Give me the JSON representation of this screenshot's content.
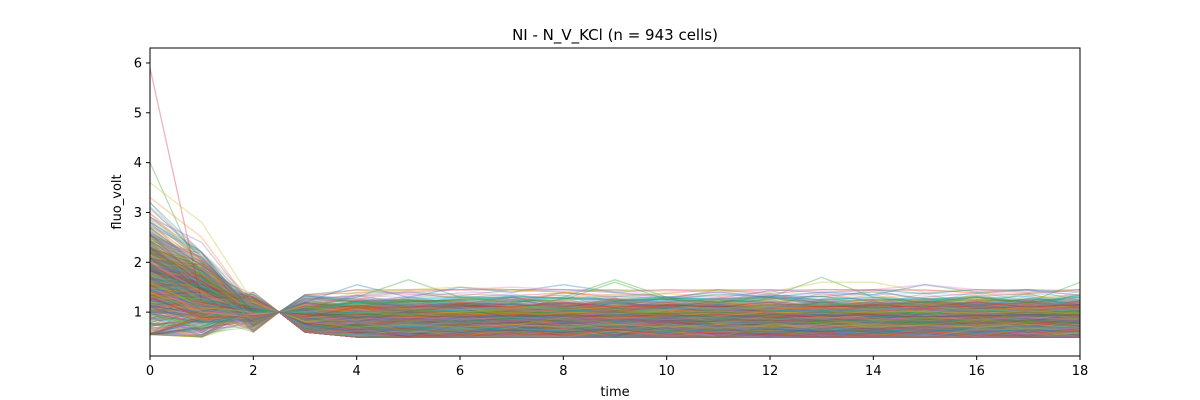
{
  "chart_data": {
    "type": "line",
    "title": "NI - N_V_KCl (n = 943 cells)",
    "xlabel": "time",
    "ylabel": "fluo_volt",
    "xlim": [
      0,
      18
    ],
    "ylim": [
      0.12,
      6.3
    ],
    "xticks": [
      "0",
      "2",
      "4",
      "6",
      "8",
      "10",
      "12",
      "14",
      "16",
      "18"
    ],
    "yticks": [
      "1",
      "2",
      "3",
      "4",
      "5",
      "6"
    ],
    "grid": false,
    "legend": "none",
    "x": [
      0,
      1,
      2,
      2.5,
      3,
      4,
      5,
      6,
      7,
      8,
      9,
      10,
      11,
      12,
      13,
      14,
      15,
      16,
      17,
      18
    ],
    "n_series": 943,
    "series_alpha": 0.25,
    "palette": [
      "#1f77b4",
      "#ff7f0e",
      "#2ca02c",
      "#d62728",
      "#9467bd",
      "#8c564b",
      "#e377c2",
      "#7f7f7f",
      "#bcbd22",
      "#17becf"
    ],
    "series": [
      {
        "values": [
          5.9,
          1.2,
          1.0,
          1.0,
          0.95,
          0.9,
          0.92,
          0.9,
          0.95,
          0.93,
          0.9,
          0.92,
          0.95,
          0.9,
          0.93,
          0.95,
          0.9,
          0.92,
          0.95,
          0.93
        ],
        "color": "#d62728"
      },
      {
        "values": [
          4.0,
          1.7,
          1.1,
          1.0,
          0.9,
          1.0,
          1.05,
          1.0,
          0.98,
          1.0,
          1.02,
          0.98,
          1.0,
          1.02,
          1.0,
          0.98,
          1.0,
          1.02,
          1.0,
          1.0
        ],
        "color": "#2ca02c"
      },
      {
        "values": [
          3.6,
          2.8,
          1.2,
          1.0,
          1.1,
          1.0,
          0.95,
          1.0,
          1.05,
          1.0,
          0.98,
          1.0,
          1.02,
          1.0,
          0.98,
          1.0,
          1.02,
          0.98,
          1.0,
          0.98
        ],
        "color": "#bcbd22"
      },
      {
        "values": [
          3.3,
          2.5,
          1.1,
          1.0,
          1.0,
          1.1,
          1.1,
          1.05,
          1.1,
          1.05,
          1.1,
          1.05,
          1.1,
          1.05,
          1.1,
          1.05,
          1.1,
          1.05,
          1.1,
          1.05
        ],
        "color": "#ff7f0e"
      },
      {
        "values": [
          3.1,
          2.1,
          1.0,
          1.0,
          1.0,
          0.9,
          0.95,
          0.92,
          0.9,
          0.93,
          0.95,
          0.92,
          0.9,
          0.93,
          0.95,
          0.92,
          0.9,
          0.93,
          0.95,
          0.92
        ],
        "color": "#1f77b4"
      },
      {
        "values": [
          2.9,
          2.4,
          1.1,
          1.0,
          1.05,
          1.0,
          1.05,
          1.1,
          1.05,
          1.0,
          1.05,
          1.1,
          1.05,
          1.0,
          1.05,
          1.1,
          1.05,
          1.0,
          1.05,
          1.1
        ],
        "color": "#9467bd"
      },
      {
        "values": [
          2.6,
          2.0,
          1.05,
          1.0,
          1.0,
          1.0,
          1.0,
          1.05,
          1.1,
          1.05,
          1.0,
          1.05,
          1.1,
          1.05,
          1.0,
          1.05,
          1.1,
          1.05,
          1.0,
          1.05
        ],
        "color": "#17becf"
      },
      {
        "values": [
          2.3,
          1.6,
          1.0,
          1.0,
          0.95,
          0.95,
          1.0,
          0.95,
          0.9,
          0.95,
          1.0,
          0.95,
          0.9,
          0.95,
          1.0,
          0.95,
          0.9,
          0.95,
          1.0,
          0.95
        ],
        "color": "#8c564b"
      },
      {
        "values": [
          2.0,
          1.4,
          0.95,
          1.0,
          0.9,
          0.85,
          0.9,
          0.85,
          0.9,
          0.85,
          0.9,
          0.85,
          0.9,
          0.85,
          0.9,
          0.85,
          0.9,
          0.85,
          0.9,
          0.85
        ],
        "color": "#e377c2"
      },
      {
        "values": [
          1.7,
          1.2,
          0.9,
          1.0,
          0.85,
          0.8,
          0.85,
          0.8,
          0.85,
          0.8,
          0.85,
          0.8,
          0.85,
          0.8,
          0.85,
          0.8,
          0.85,
          0.8,
          0.85,
          0.8
        ],
        "color": "#7f7f7f"
      },
      {
        "values": [
          1.4,
          1.0,
          0.9,
          1.0,
          0.8,
          0.7,
          0.75,
          0.7,
          0.75,
          0.7,
          0.75,
          0.7,
          0.75,
          0.7,
          0.75,
          0.7,
          0.75,
          0.7,
          0.75,
          0.7
        ],
        "color": "#bcbd22"
      },
      {
        "values": [
          1.1,
          0.8,
          0.85,
          1.0,
          0.75,
          0.6,
          0.65,
          0.6,
          0.65,
          0.6,
          0.65,
          0.6,
          0.65,
          0.6,
          0.65,
          0.6,
          0.65,
          0.6,
          0.65,
          0.6
        ],
        "color": "#1f77b4"
      },
      {
        "values": [
          0.9,
          0.6,
          0.8,
          1.0,
          0.7,
          0.55,
          0.55,
          0.52,
          0.55,
          0.52,
          0.55,
          0.52,
          0.55,
          0.52,
          0.55,
          0.52,
          0.55,
          0.52,
          0.55,
          0.52
        ],
        "color": "#9467bd"
      },
      {
        "values": [
          2.1,
          1.5,
          1.0,
          1.0,
          1.1,
          1.3,
          1.65,
          1.3,
          1.2,
          1.3,
          1.65,
          1.3,
          1.2,
          1.3,
          1.7,
          1.3,
          1.2,
          1.3,
          1.2,
          1.3
        ],
        "color": "#2ca02c"
      },
      {
        "values": [
          1.9,
          1.3,
          1.0,
          1.0,
          1.2,
          1.55,
          1.3,
          1.5,
          1.4,
          1.55,
          1.4,
          1.3,
          1.4,
          1.3,
          1.4,
          1.35,
          1.55,
          1.4,
          1.45,
          1.4
        ],
        "color": "#1f77b4"
      },
      {
        "values": [
          1.6,
          1.1,
          1.0,
          1.0,
          1.15,
          1.4,
          1.45,
          1.5,
          1.45,
          1.4,
          1.45,
          1.4,
          1.45,
          1.4,
          1.6,
          1.6,
          1.4,
          1.45,
          1.4,
          1.45
        ],
        "color": "#bcbd22"
      },
      {
        "values": [
          1.5,
          1.0,
          0.95,
          1.0,
          1.1,
          1.35,
          1.4,
          1.45,
          1.5,
          1.45,
          1.4,
          1.45,
          1.4,
          1.45,
          1.4,
          1.45,
          1.55,
          1.45,
          1.4,
          1.45
        ],
        "color": "#e377c2"
      },
      {
        "values": [
          2.2,
          1.7,
          1.05,
          1.0,
          1.05,
          1.2,
          1.2,
          1.25,
          1.2,
          1.25,
          1.6,
          1.25,
          1.2,
          1.25,
          1.2,
          1.25,
          1.2,
          1.25,
          1.2,
          1.6
        ],
        "color": "#2ca02c"
      },
      {
        "values": [
          1.8,
          1.25,
          1.0,
          1.0,
          1.0,
          1.2,
          1.25,
          1.3,
          1.25,
          1.3,
          1.25,
          1.3,
          1.25,
          1.3,
          1.25,
          1.3,
          1.25,
          1.3,
          1.25,
          1.3
        ],
        "color": "#17becf"
      },
      {
        "values": [
          1.3,
          0.9,
          0.9,
          1.0,
          0.9,
          1.1,
          1.1,
          1.15,
          1.1,
          1.2,
          1.1,
          1.15,
          1.1,
          1.2,
          1.1,
          1.15,
          1.1,
          1.2,
          1.1,
          1.15
        ],
        "color": "#d62728"
      }
    ],
    "band": {
      "x": [
        0,
        1,
        2,
        2.5,
        3,
        4,
        5,
        6,
        7,
        8,
        9,
        10,
        11,
        12,
        13,
        14,
        15,
        16,
        17,
        18
      ],
      "low": [
        0.55,
        0.55,
        0.6,
        1.0,
        0.6,
        0.5,
        0.5,
        0.5,
        0.5,
        0.5,
        0.5,
        0.5,
        0.5,
        0.5,
        0.5,
        0.5,
        0.5,
        0.5,
        0.5,
        0.5
      ],
      "high": [
        3.2,
        2.2,
        1.4,
        1.0,
        1.35,
        1.45,
        1.45,
        1.45,
        1.45,
        1.45,
        1.45,
        1.45,
        1.45,
        1.45,
        1.45,
        1.45,
        1.45,
        1.45,
        1.45,
        1.45
      ]
    }
  }
}
